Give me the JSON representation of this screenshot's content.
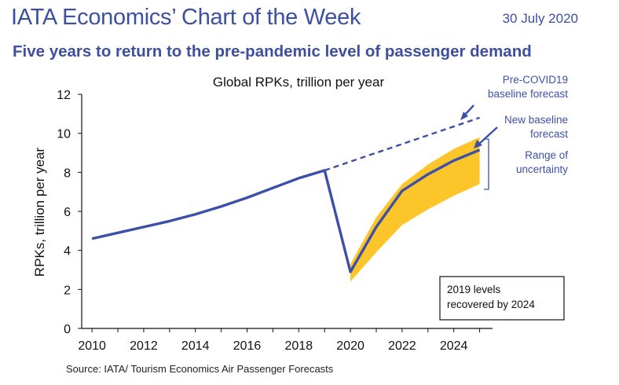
{
  "header": {
    "title": "IATA Economics’ Chart of the Week",
    "date": "30 July 2020",
    "subtitle": "Five years to return to the pre-pandemic level of passenger demand"
  },
  "source": "Source: IATA/ Tourism Economics Air Passenger Forecasts",
  "colors": {
    "accent": "#3d4f9f",
    "series_line": "#3d50a8",
    "uncertainty_band": "#fcc52a",
    "text": "#222222"
  },
  "chart_data": {
    "type": "line",
    "title": "Global RPKs, trillion per year",
    "xlabel": "",
    "ylabel": "RPKs, trillion per year",
    "xlim": [
      2009.6,
      2025.5
    ],
    "ylim": [
      0,
      12
    ],
    "xticks": [
      2010,
      2012,
      2014,
      2016,
      2018,
      2020,
      2022,
      2024
    ],
    "yticks": [
      0,
      2,
      4,
      6,
      8,
      10,
      12
    ],
    "grid": false,
    "series": [
      {
        "name": "",
        "style": "solid",
        "x": [
          2010,
          2011,
          2012,
          2013,
          2014,
          2015,
          2016,
          2017,
          2018,
          2019,
          2020,
          2021,
          2022,
          2023,
          2024,
          2025
        ],
        "y": [
          4.6,
          4.9,
          5.2,
          5.5,
          5.85,
          6.25,
          6.7,
          7.2,
          7.7,
          8.1,
          2.9,
          5.2,
          7.05,
          7.9,
          8.6,
          9.15
        ]
      },
      {
        "name": "Pre-COVID19 baseline forecast",
        "style": "dashed",
        "x": [
          2019,
          2025
        ],
        "y": [
          8.1,
          10.8
        ]
      }
    ],
    "band": {
      "name": "Range of uncertainty",
      "x": [
        2020,
        2021,
        2022,
        2023,
        2024,
        2025
      ],
      "lower": [
        2.4,
        3.9,
        5.3,
        6.1,
        6.8,
        7.4
      ],
      "upper": [
        3.3,
        5.7,
        7.4,
        8.4,
        9.2,
        9.8
      ]
    },
    "annotations": [
      {
        "text_lines": [
          "Pre-COVID19",
          "baseline forecast"
        ]
      },
      {
        "text_lines": [
          "New baseline",
          "forecast"
        ]
      },
      {
        "text_lines": [
          "Range of",
          "uncertainty"
        ]
      },
      {
        "text_lines": [
          "2019 levels",
          "recovered by 2024"
        ]
      }
    ]
  }
}
